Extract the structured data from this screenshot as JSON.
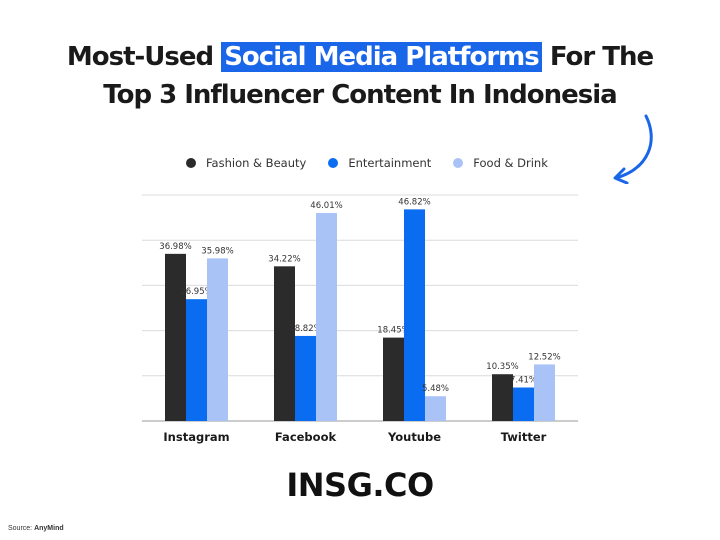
{
  "header": {
    "title_part1": "Most-Used",
    "title_highlight": "Social Media Platforms",
    "title_part2": "For The",
    "title_line2": "Top 3 Influencer Content In Indonesia"
  },
  "brand": "INSG.CO",
  "source": {
    "label": "Source:",
    "value": "AnyMind"
  },
  "colors": {
    "fashion": "#2b2b2b",
    "entertainment": "#0a6cf0",
    "food": "#a9c3f7",
    "highlight": "#1a66e8",
    "grid": "#dcdcdc"
  },
  "chart_data": {
    "type": "bar",
    "categories": [
      "Instagram",
      "Facebook",
      "Youtube",
      "Twitter"
    ],
    "series": [
      {
        "name": "Fashion & Beauty",
        "values": [
          36.98,
          34.22,
          18.45,
          10.35
        ],
        "labels": [
          "36.98%",
          "34.22%",
          "18.45%",
          "10.35%"
        ]
      },
      {
        "name": "Entertainment",
        "values": [
          26.95,
          18.82,
          46.82,
          7.41
        ],
        "labels": [
          "26.95%",
          "18.82%",
          "46.82%",
          "7.41%"
        ]
      },
      {
        "name": "Food & Drink",
        "values": [
          35.98,
          46.01,
          5.48,
          12.52
        ],
        "labels": [
          "35.98%",
          "46.01%",
          "5.48%",
          "12.52%"
        ]
      }
    ],
    "ylim": [
      0,
      50
    ],
    "grid": true,
    "legend": "top"
  }
}
